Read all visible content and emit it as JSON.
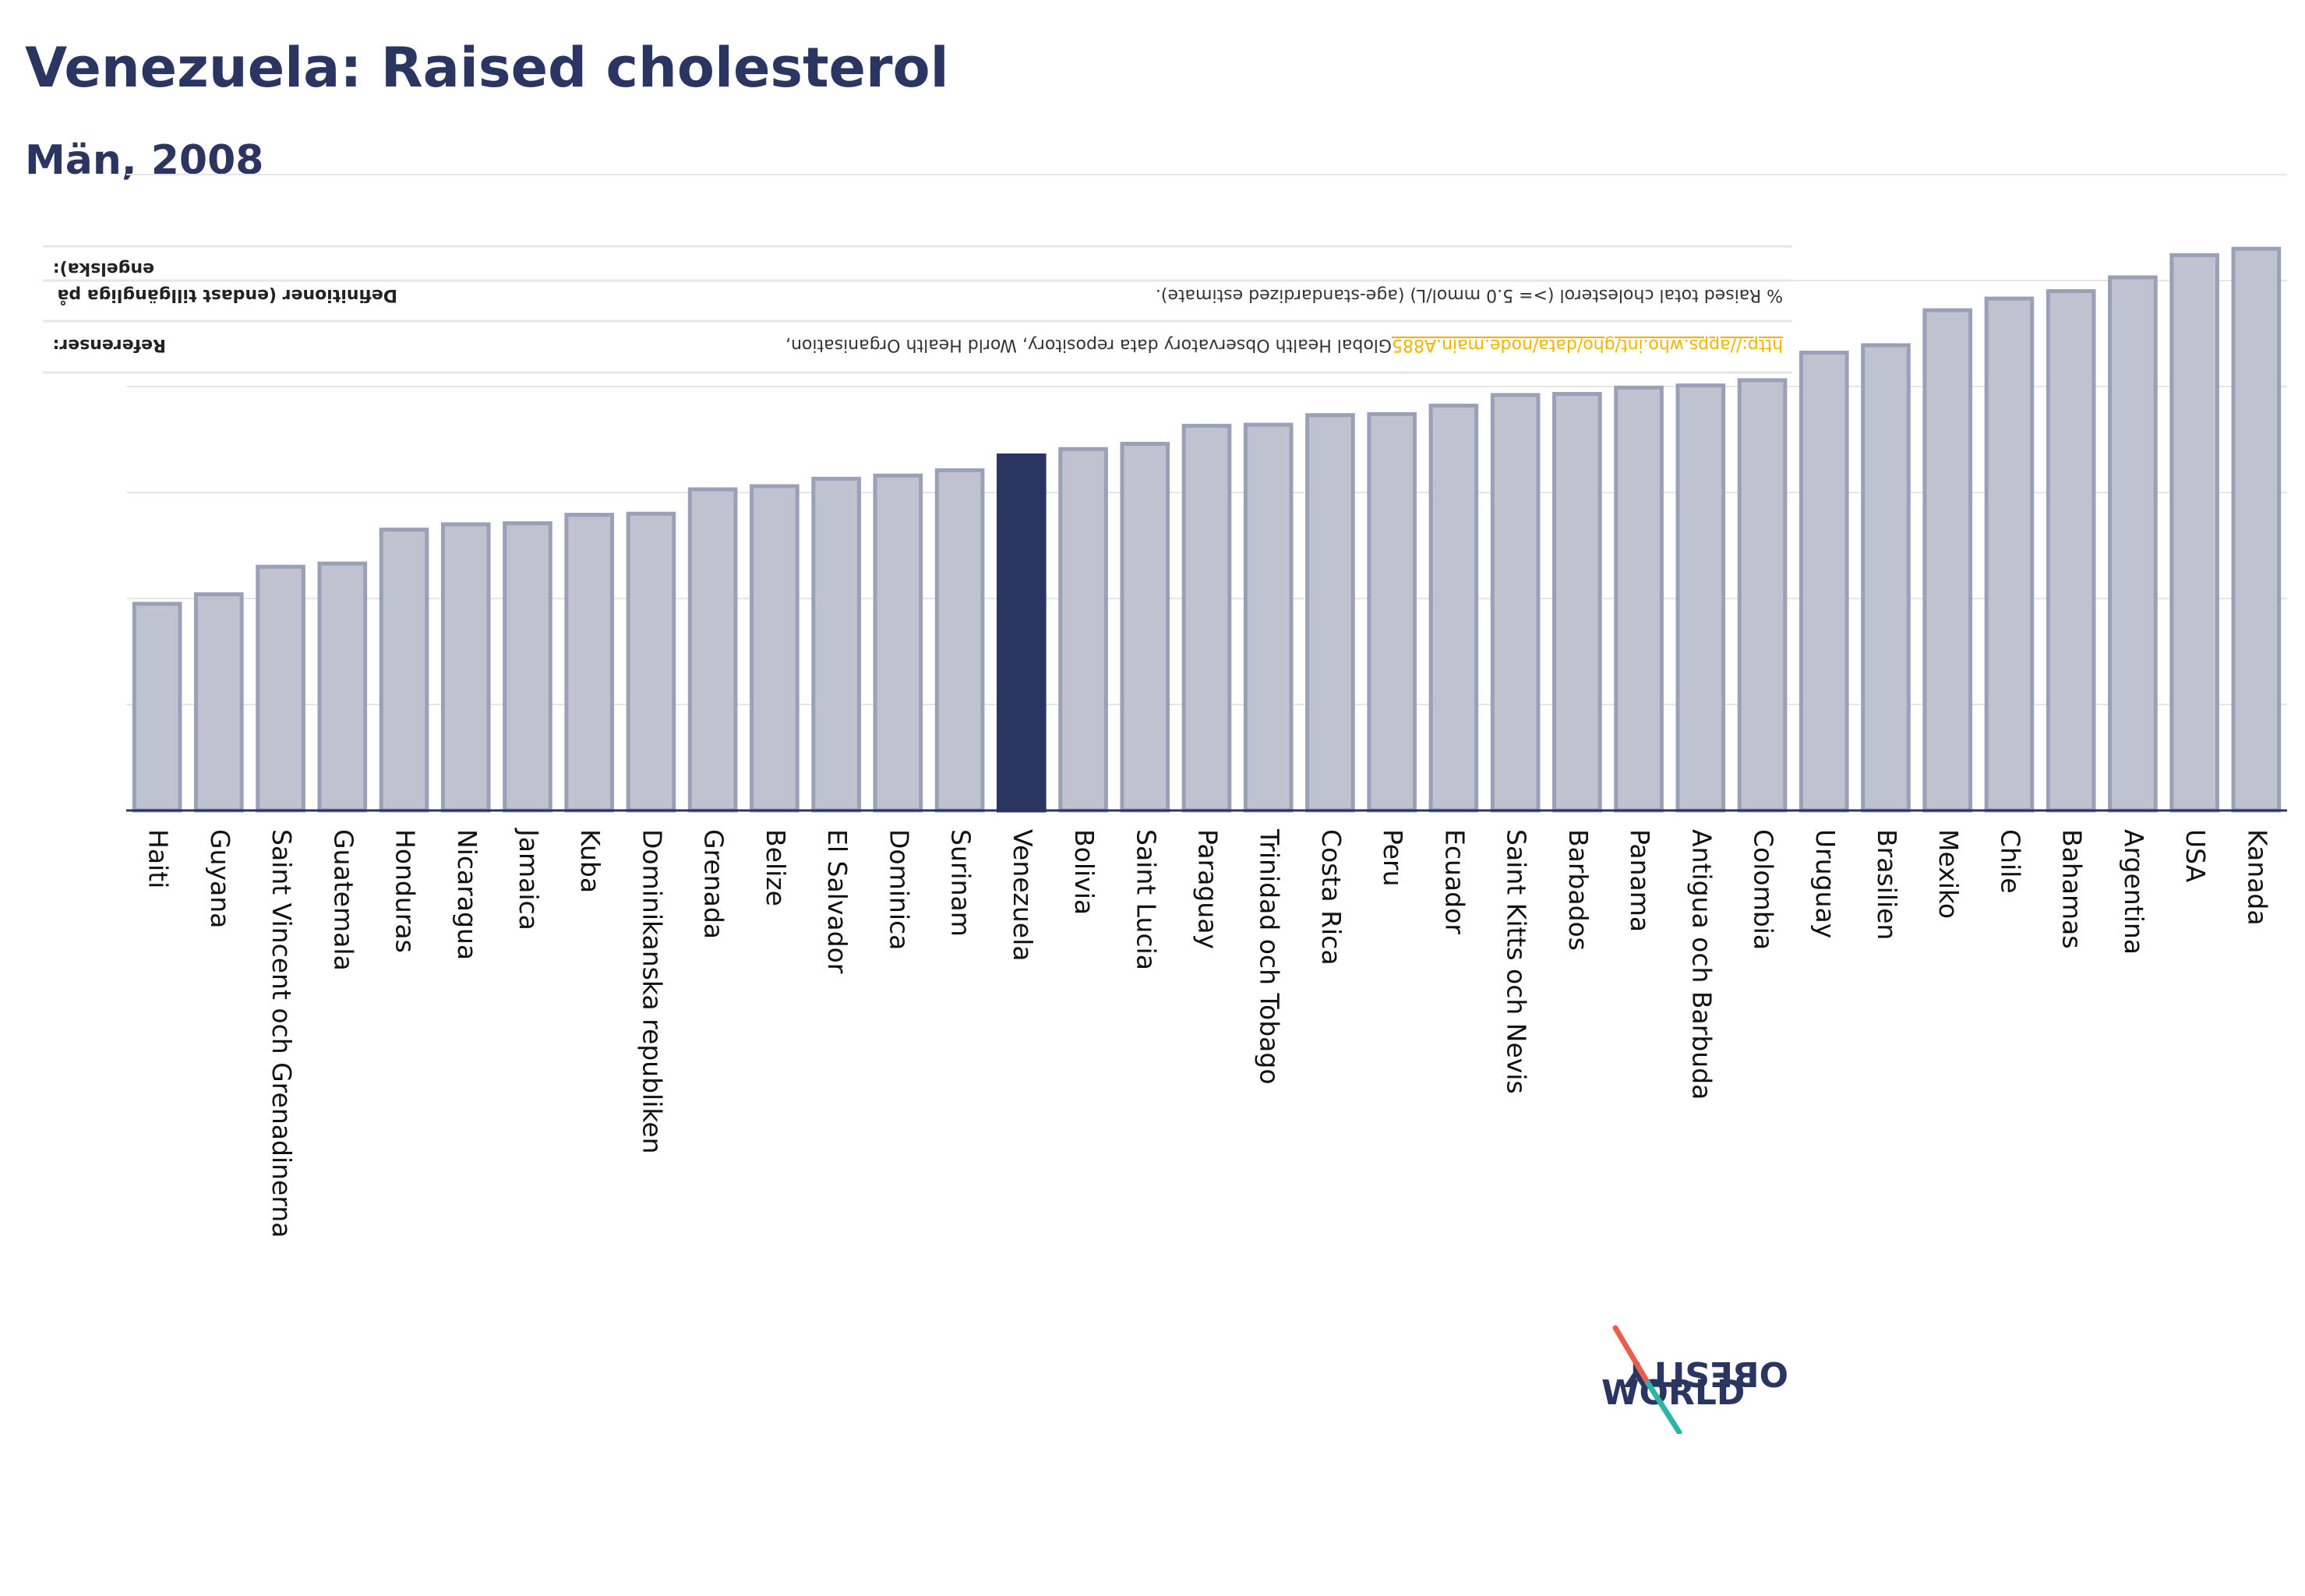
{
  "title": "Venezuela: Raised cholesterol",
  "subtitle": "Män, 2008",
  "notes": {
    "refs_label": "Referenser:",
    "refs_text": "Global Health Observatory data repository, World Health Organisation, ",
    "refs_link": "http://apps.who.int/gho/data/node.main.A885",
    "defs_label_1": "Definitioner (endast tillgängliga på",
    "defs_label_2": "engelska):",
    "defs_text": "% Raised total cholesterol (>= 5.0 mmol/L) (age-standardized estimate)."
  },
  "logo": {
    "line1": "OBESITY",
    "line2": "WORLD"
  },
  "colors": {
    "bar": "#bfc2cf",
    "bar_stroke": "#9aa0b8",
    "highlight": "#2b3561",
    "axis": "#2b3561",
    "grid": "#e6e6e6",
    "link": "#f2b400",
    "logo_red": "#e8604c",
    "logo_teal": "#2ab5a8"
  },
  "chart_data": {
    "type": "bar",
    "categories": [
      "Haiti",
      "Guyana",
      "Saint Vincent och Grenadinerna",
      "Guatemala",
      "Honduras",
      "Nicaragua",
      "Jamaica",
      "Kuba",
      "Dominikanska republiken",
      "Grenada",
      "Belize",
      "El Salvador",
      "Dominica",
      "Surinam",
      "Venezuela",
      "Bolivia",
      "Saint Lucia",
      "Paraguay",
      "Trinidad och Tobago",
      "Costa Rica",
      "Peru",
      "Ecuador",
      "Saint Kitts och Nevis",
      "Barbados",
      "Panama",
      "Antigua och Barbuda",
      "Colombia",
      "Uruguay",
      "Brasilien",
      "Mexiko",
      "Chile",
      "Bahamas",
      "Argentina",
      "USA",
      "Kanada"
    ],
    "values": [
      19.5,
      20.4,
      23.0,
      23.3,
      26.5,
      27.0,
      27.1,
      27.9,
      28.0,
      30.3,
      30.6,
      31.3,
      31.6,
      32.1,
      33.5,
      34.1,
      34.6,
      36.3,
      36.4,
      37.3,
      37.4,
      38.2,
      39.2,
      39.3,
      39.9,
      40.1,
      40.6,
      43.2,
      43.9,
      47.2,
      48.3,
      49.0,
      50.3,
      52.4,
      53.0
    ],
    "highlight": "Venezuela",
    "ylim": [
      0,
      60
    ],
    "grid": true,
    "xlabel": "",
    "ylabel": ""
  }
}
